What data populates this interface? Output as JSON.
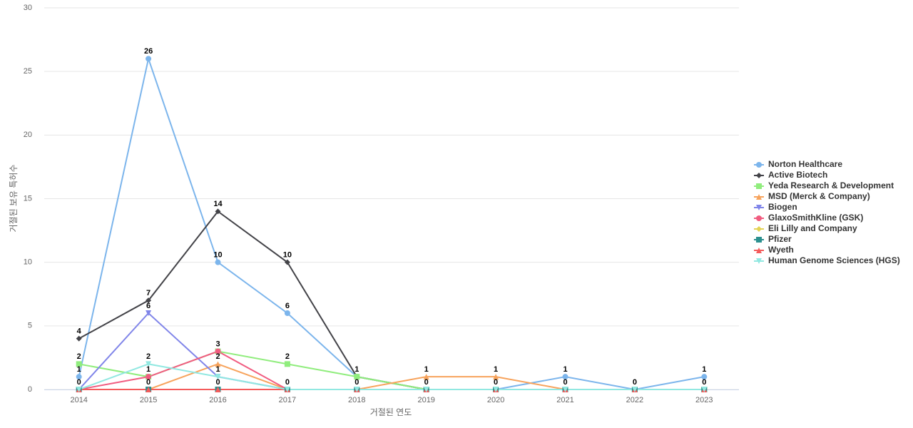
{
  "chart_data": {
    "type": "line",
    "x_label": "거절된 연도",
    "y_label": "거절된 보유 특허수",
    "categories": [
      "2014",
      "2015",
      "2016",
      "2017",
      "2018",
      "2019",
      "2020",
      "2021",
      "2022",
      "2023"
    ],
    "ylim": [
      0,
      30
    ],
    "yticks": [
      0,
      5,
      10,
      15,
      20,
      25,
      30
    ],
    "grid": true,
    "legend": "right",
    "series": [
      {
        "name": "Norton Healthcare",
        "color": "#7cb5ec",
        "marker": "circle",
        "values": [
          1,
          26,
          10,
          6,
          1,
          0,
          0,
          1,
          0,
          1
        ]
      },
      {
        "name": "Active Biotech",
        "color": "#434348",
        "marker": "diamond",
        "values": [
          4,
          7,
          14,
          10,
          1,
          0,
          0,
          0,
          0,
          0
        ]
      },
      {
        "name": "Yeda Research & Development",
        "color": "#90ed7d",
        "marker": "square",
        "values": [
          2,
          1,
          3,
          2,
          1,
          0,
          0,
          0,
          0,
          0
        ]
      },
      {
        "name": "MSD (Merck & Company)",
        "color": "#f7a35c",
        "marker": "triangle",
        "values": [
          0,
          0,
          2,
          0,
          0,
          1,
          1,
          0,
          0,
          0
        ]
      },
      {
        "name": "Biogen",
        "color": "#8085e9",
        "marker": "triangle-down",
        "values": [
          0,
          6,
          1,
          0,
          0,
          0,
          0,
          0,
          0,
          0
        ]
      },
      {
        "name": "GlaxoSmithKline (GSK)",
        "color": "#f15c80",
        "marker": "circle",
        "values": [
          0,
          1,
          3,
          0,
          0,
          0,
          0,
          0,
          0,
          0
        ]
      },
      {
        "name": "Eli Lilly and Company",
        "color": "#e4d354",
        "marker": "diamond",
        "values": [
          0,
          0,
          0,
          0,
          0,
          0,
          0,
          0,
          0,
          0
        ]
      },
      {
        "name": "Pfizer",
        "color": "#2b908f",
        "marker": "square",
        "values": [
          0,
          0,
          0,
          0,
          0,
          0,
          0,
          0,
          0,
          0
        ]
      },
      {
        "name": "Wyeth",
        "color": "#f45b5b",
        "marker": "triangle",
        "values": [
          0,
          0,
          0,
          0,
          0,
          0,
          0,
          0,
          0,
          0
        ]
      },
      {
        "name": "Human Genome Sciences (HGS)",
        "color": "#91e8e1",
        "marker": "triangle-down",
        "values": [
          0,
          2,
          1,
          0,
          0,
          0,
          0,
          0,
          0,
          0
        ]
      }
    ]
  }
}
